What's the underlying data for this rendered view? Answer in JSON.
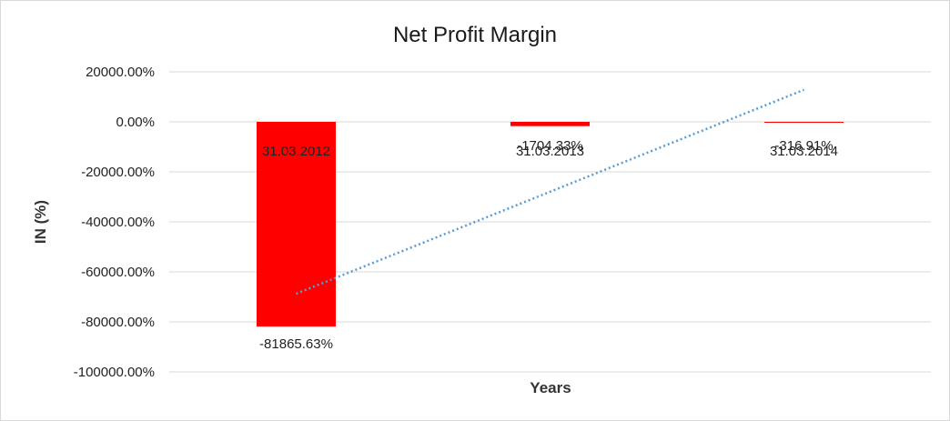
{
  "chart_data": {
    "type": "bar",
    "title": "Net Profit Margin",
    "xlabel": "Years",
    "ylabel": "IN (%)",
    "categories": [
      "31.03.2012",
      "31.03.2013",
      "31.03.2014"
    ],
    "series": [
      {
        "values": [
          -81865.63,
          -1704.33,
          -316.91
        ],
        "data_labels": [
          "-81865.63%",
          "-1704.33%",
          "-316.91%"
        ],
        "color": "#ff0000"
      }
    ],
    "trendline": {
      "type": "linear",
      "style": "dotted",
      "color": "#5b9bd5"
    },
    "ylim": [
      -100000,
      20000
    ],
    "yticks": [
      20000,
      0,
      -20000,
      -40000,
      -60000,
      -80000,
      -100000
    ],
    "ytick_labels": [
      "20000.00%",
      "0.00%",
      "-20000.00%",
      "-40000.00%",
      "-60000.00%",
      "-80000.00%",
      "-100000.00%"
    ],
    "grid": true,
    "legend": "none"
  }
}
